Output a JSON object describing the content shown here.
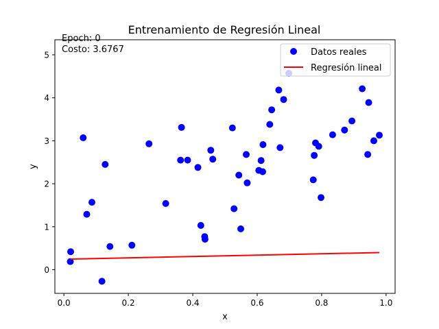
{
  "chart_data": {
    "type": "scatter",
    "title": "Entrenamiento de Regresión Lineal",
    "xlabel": "x",
    "ylabel": "y",
    "xlim": [
      -0.028,
      1.028
    ],
    "ylim": [
      -0.55,
      5.35
    ],
    "xticks": [
      "0.0",
      "0.2",
      "0.4",
      "0.6",
      "0.8",
      "1.0"
    ],
    "xtick_values": [
      0.0,
      0.2,
      0.4,
      0.6,
      0.8,
      1.0
    ],
    "yticks": [
      "0",
      "1",
      "2",
      "3",
      "4",
      "5"
    ],
    "ytick_values": [
      0,
      1,
      2,
      3,
      4,
      5
    ],
    "grid": false,
    "legend_position": "top-right",
    "annotation": {
      "epoch": "Epoch: 0",
      "cost": "Costo: 3.6767"
    },
    "series": [
      {
        "name": "Datos reales",
        "kind": "scatter",
        "color": "#0000ff",
        "points": [
          [
            0.02,
            0.19
          ],
          [
            0.021,
            0.42
          ],
          [
            0.06,
            3.07
          ],
          [
            0.071,
            1.29
          ],
          [
            0.087,
            1.57
          ],
          [
            0.118,
            -0.27
          ],
          [
            0.128,
            2.45
          ],
          [
            0.143,
            0.54
          ],
          [
            0.211,
            0.57
          ],
          [
            0.264,
            2.93
          ],
          [
            0.316,
            1.54
          ],
          [
            0.362,
            2.55
          ],
          [
            0.365,
            3.31
          ],
          [
            0.384,
            2.55
          ],
          [
            0.416,
            2.38
          ],
          [
            0.425,
            1.03
          ],
          [
            0.437,
            0.77
          ],
          [
            0.438,
            0.71
          ],
          [
            0.456,
            2.78
          ],
          [
            0.462,
            2.57
          ],
          [
            0.523,
            3.3
          ],
          [
            0.528,
            1.42
          ],
          [
            0.543,
            2.2
          ],
          [
            0.549,
            0.95
          ],
          [
            0.566,
            2.68
          ],
          [
            0.569,
            2.02
          ],
          [
            0.605,
            2.31
          ],
          [
            0.612,
            2.54
          ],
          [
            0.617,
            2.28
          ],
          [
            0.618,
            2.91
          ],
          [
            0.639,
            3.38
          ],
          [
            0.645,
            3.72
          ],
          [
            0.667,
            4.18
          ],
          [
            0.671,
            2.84
          ],
          [
            0.682,
            3.96
          ],
          [
            0.698,
            4.57
          ],
          [
            0.774,
            2.09
          ],
          [
            0.777,
            2.66
          ],
          [
            0.781,
            2.95
          ],
          [
            0.791,
            2.87
          ],
          [
            0.798,
            1.68
          ],
          [
            0.834,
            3.14
          ],
          [
            0.871,
            3.25
          ],
          [
            0.894,
            3.46
          ],
          [
            0.926,
            4.21
          ],
          [
            0.943,
            2.68
          ],
          [
            0.946,
            3.89
          ],
          [
            0.962,
            3.0
          ],
          [
            0.979,
            3.13
          ]
        ]
      },
      {
        "name": "Regresión lineal",
        "kind": "line",
        "color": "#ff0000",
        "x": [
          0.02,
          0.979
        ],
        "y": [
          0.248,
          0.398
        ]
      }
    ]
  }
}
